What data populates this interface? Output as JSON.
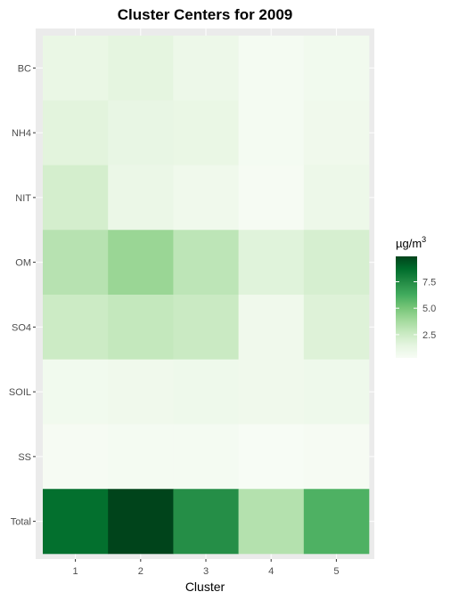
{
  "chart_data": {
    "type": "heatmap",
    "title": "Cluster Centers for 2009",
    "xlabel": "Cluster",
    "ylabel": "",
    "x_categories": [
      "1",
      "2",
      "3",
      "4",
      "5"
    ],
    "y_categories": [
      "BC",
      "NH4",
      "NIT",
      "OM",
      "SO4",
      "SOIL",
      "SS",
      "Total"
    ],
    "values": [
      [
        1.2,
        1.5,
        1.0,
        0.5,
        0.7
      ],
      [
        1.6,
        1.3,
        1.2,
        0.5,
        0.8
      ],
      [
        2.2,
        1.1,
        0.8,
        0.4,
        1.0
      ],
      [
        3.2,
        4.1,
        3.0,
        1.7,
        2.1
      ],
      [
        2.5,
        2.8,
        2.6,
        0.8,
        1.8
      ],
      [
        0.7,
        0.8,
        0.9,
        0.8,
        0.9
      ],
      [
        0.4,
        0.5,
        0.5,
        0.3,
        0.4
      ],
      [
        8.6,
        9.9,
        7.4,
        3.3,
        6.0
      ]
    ],
    "legend": {
      "title_base": "µg/m",
      "title_sup": "3",
      "ticks": [
        "2.5",
        "5.0",
        "7.5"
      ],
      "placement": "right"
    },
    "color_scale": {
      "low": "#f7fcf5",
      "high": "#00441b"
    },
    "value_range": [
      0.3,
      9.9
    ]
  }
}
